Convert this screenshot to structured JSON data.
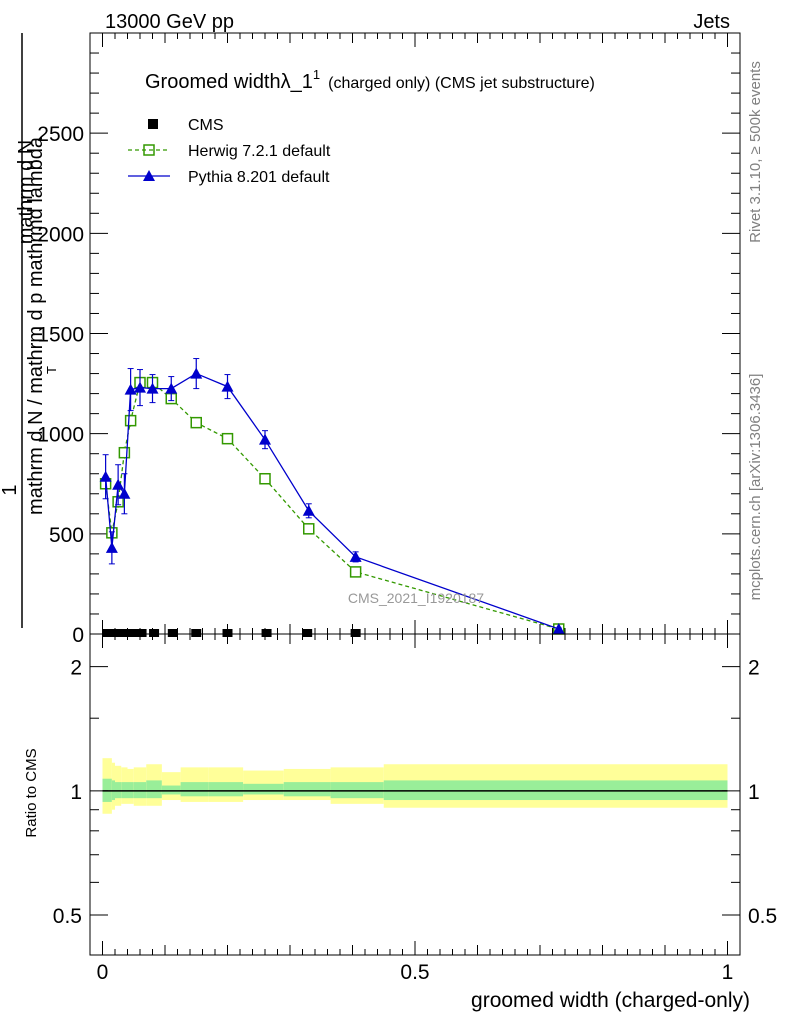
{
  "header": {
    "left": "13000 GeV pp",
    "right": "Jets"
  },
  "side_labels": {
    "rivet": "Rivet 3.1.10, ≥ 500k events",
    "mcplots": "mcplots.cern.ch [arXiv:1306.3436]"
  },
  "watermark": "CMS_2021_I1920187",
  "chart_data": [
    {
      "type": "line",
      "panel": "main",
      "title_main": "Groomed widthλ_1",
      "title_sup": "1",
      "title_sub": "(charged only) (CMS jet substructure)",
      "ylabel_num": "1",
      "ylabel_den": "mathrm d N / mathrm d p mathrmd lambda",
      "ylabel_sub": "T",
      "ylabel_right": "mathrm d^2N / mathrm d p mathrmd lambda",
      "ylabel_rightalt": "mathrm d N",
      "ylim": [
        0,
        3000
      ],
      "xlim": [
        -0.02,
        1.02
      ],
      "yticks": [
        0,
        500,
        1000,
        1500,
        2000,
        2500
      ],
      "ytick_labels": [
        "0",
        "500",
        "1000",
        "1500",
        "2000",
        "2500"
      ],
      "legend": [
        {
          "name": "CMS",
          "style": "black-square"
        },
        {
          "name": "Herwig 7.2.1 default",
          "style": "green-open-square-dashed"
        },
        {
          "name": "Pythia 8.201 default",
          "style": "blue-triangle-solid"
        }
      ],
      "series": [
        {
          "name": "CMS",
          "color": "#000000",
          "x": [
            0.0075,
            0.0175,
            0.0275,
            0.0375,
            0.05,
            0.0625,
            0.0825,
            0.1125,
            0.15,
            0.2,
            0.2625,
            0.3275,
            0.405
          ],
          "y": [
            0,
            0,
            0,
            0,
            0,
            0,
            0,
            0,
            0,
            0,
            0,
            0,
            0
          ]
        },
        {
          "name": "Herwig 7.2.1 default",
          "color": "#339900",
          "x": [
            0.005,
            0.015,
            0.025,
            0.035,
            0.045,
            0.06,
            0.08,
            0.11,
            0.15,
            0.2,
            0.26,
            0.33,
            0.405,
            0.73
          ],
          "y": [
            750,
            505,
            660,
            905,
            1065,
            1255,
            1255,
            1175,
            1055,
            975,
            775,
            525,
            310,
            25
          ],
          "err": [
            30,
            30,
            30,
            30,
            30,
            30,
            30,
            25,
            20,
            20,
            15,
            15,
            10,
            5
          ]
        },
        {
          "name": "Pythia 8.201 default",
          "color": "#0000cc",
          "x": [
            0.005,
            0.015,
            0.025,
            0.035,
            0.045,
            0.06,
            0.08,
            0.11,
            0.15,
            0.2,
            0.26,
            0.33,
            0.405,
            0.73
          ],
          "y": [
            785,
            430,
            745,
            700,
            1220,
            1230,
            1225,
            1225,
            1300,
            1235,
            970,
            615,
            385,
            25
          ],
          "err": [
            110,
            80,
            100,
            100,
            105,
            90,
            70,
            60,
            75,
            60,
            45,
            35,
            25,
            5
          ]
        }
      ]
    },
    {
      "type": "area",
      "panel": "ratio",
      "ylabel": "Ratio to CMS",
      "ylim": [
        0.4,
        2.4
      ],
      "scale": "log",
      "yticks": [
        0.5,
        1,
        2
      ],
      "ytick_labels": [
        "0.5",
        "1",
        "2"
      ],
      "xlabel": "groomed width (charged-only)",
      "xticks": [
        0,
        0.5,
        1
      ],
      "xtick_labels": [
        "0",
        "0.5",
        "1"
      ],
      "bins": [
        0,
        0.015,
        0.02,
        0.03,
        0.04,
        0.05,
        0.07,
        0.095,
        0.125,
        0.17,
        0.225,
        0.29,
        0.365,
        0.45,
        1.0
      ],
      "band_yellow_lo": [
        0.88,
        0.9,
        0.92,
        0.93,
        0.93,
        0.92,
        0.92,
        0.95,
        0.94,
        0.94,
        0.95,
        0.95,
        0.93,
        0.91,
        0.93
      ],
      "band_yellow_hi": [
        1.2,
        1.17,
        1.15,
        1.14,
        1.13,
        1.14,
        1.16,
        1.11,
        1.14,
        1.14,
        1.12,
        1.13,
        1.14,
        1.16,
        1.14
      ],
      "band_green_lo": [
        0.94,
        0.95,
        0.96,
        0.96,
        0.96,
        0.96,
        0.96,
        0.98,
        0.97,
        0.97,
        0.98,
        0.97,
        0.96,
        0.95,
        0.96
      ],
      "band_green_hi": [
        1.07,
        1.06,
        1.05,
        1.05,
        1.05,
        1.05,
        1.06,
        1.03,
        1.05,
        1.05,
        1.04,
        1.05,
        1.05,
        1.06,
        1.05
      ]
    }
  ]
}
